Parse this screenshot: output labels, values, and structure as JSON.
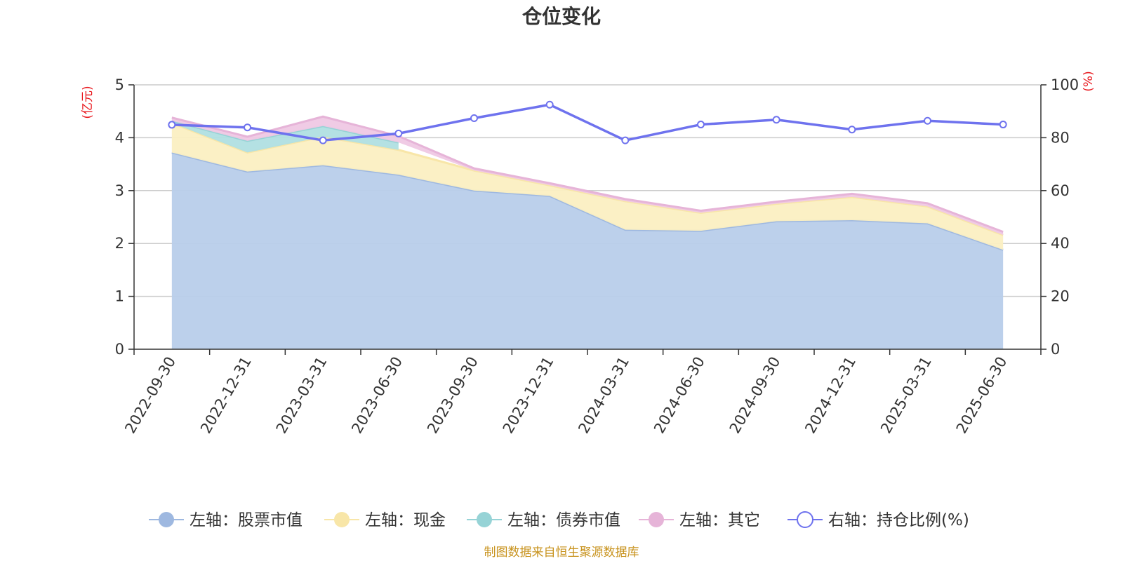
{
  "chart_data": {
    "type": "area",
    "title": "仓位变化",
    "categories": [
      "2022-09-30",
      "2022-12-31",
      "2023-03-31",
      "2023-06-30",
      "2023-09-30",
      "2023-12-31",
      "2024-03-31",
      "2024-06-30",
      "2024-09-30",
      "2024-12-31",
      "2025-03-31",
      "2025-06-30"
    ],
    "left_axis": {
      "unit": "(亿元)",
      "min": 0,
      "max": 5,
      "ticks": [
        "0",
        "1",
        "2",
        "3",
        "4",
        "5"
      ]
    },
    "right_axis": {
      "unit": "(%)",
      "min": 0,
      "max": 100,
      "ticks": [
        "0",
        "20",
        "40",
        "60",
        "80",
        "100"
      ]
    },
    "grid": true,
    "legend_position": "bottom",
    "stacked": true,
    "series": [
      {
        "name": "左轴：股票市值",
        "axis": "left",
        "kind": "area",
        "color": "#9eb8e0",
        "fill": "#b8cdea",
        "values": [
          3.72,
          3.36,
          3.48,
          3.3,
          3.0,
          2.9,
          2.26,
          2.24,
          2.42,
          2.44,
          2.38,
          1.88
        ]
      },
      {
        "name": "左轴：现金",
        "axis": "left",
        "kind": "area",
        "color": "#f8e6a8",
        "fill": "#fbefc2",
        "values": [
          0.56,
          0.36,
          0.54,
          0.47,
          0.38,
          0.2,
          0.54,
          0.34,
          0.33,
          0.44,
          0.32,
          0.28
        ]
      },
      {
        "name": "左轴：债券市值",
        "axis": "left",
        "kind": "area",
        "color": "#96d3d6",
        "fill": "#b0dfe2",
        "values": [
          0.04,
          0.22,
          0.2,
          0.14,
          null,
          null,
          null,
          null,
          null,
          null,
          null,
          null
        ]
      },
      {
        "name": "左轴：其它",
        "axis": "left",
        "kind": "area",
        "color": "#e6b4d8",
        "fill": "#efc8e4",
        "values": [
          0.06,
          0.08,
          0.18,
          0.12,
          0.04,
          0.04,
          0.04,
          0.04,
          0.04,
          0.06,
          0.06,
          0.06
        ]
      },
      {
        "name": "右轴：持仓比例(%)",
        "axis": "right",
        "kind": "line",
        "color": "#6e72ee",
        "values": [
          84.9,
          83.9,
          79.0,
          81.6,
          87.4,
          92.5,
          79.0,
          85.0,
          86.8,
          83.1,
          86.4,
          85.0
        ]
      }
    ],
    "source_note": "制图数据来自恒生聚源数据库"
  }
}
